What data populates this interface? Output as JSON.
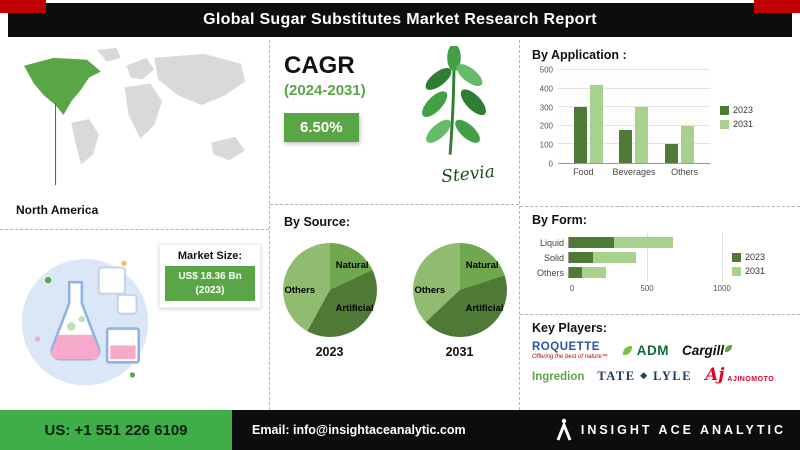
{
  "header": {
    "title": "Global Sugar Substitutes Market Research Report"
  },
  "map_section": {
    "region_label": "North America"
  },
  "market_size": {
    "label": "Market Size:",
    "value": "US$ 18.36 Bn",
    "year": "(2023)"
  },
  "cagr": {
    "label": "CAGR",
    "period": "(2024-2031)",
    "value": "6.50%",
    "plant_caption": "Stevia"
  },
  "colors": {
    "accent_green": "#5aa646",
    "footer_green": "#3fae49",
    "header_black": "#0d0d0d",
    "corner_red": "#c00000",
    "series_2023": "#4e7a35",
    "series_2031": "#a9d18e"
  },
  "chart_data": [
    {
      "id": "application",
      "type": "bar",
      "title": "By Application :",
      "categories": [
        "Food",
        "Beverages",
        "Others"
      ],
      "series": [
        {
          "name": "2023",
          "color": "#4e7a35",
          "values": [
            300,
            180,
            100
          ]
        },
        {
          "name": "2031",
          "color": "#a9d18e",
          "values": [
            420,
            300,
            200
          ]
        }
      ],
      "ylim": [
        0,
        500
      ],
      "yticks": [
        0,
        100,
        200,
        300,
        400,
        500
      ],
      "grid": true,
      "legend_position": "right"
    },
    {
      "id": "form",
      "type": "bar-horizontal-stacked",
      "title": "By  Form:",
      "categories": [
        "Liquid",
        "Solid",
        "Others"
      ],
      "series": [
        {
          "name": "2023",
          "color": "#4e7a35",
          "values": [
            300,
            160,
            90
          ]
        },
        {
          "name": "2031",
          "color": "#a9d18e",
          "values": [
            400,
            290,
            160
          ]
        }
      ],
      "xlim": [
        0,
        1000
      ],
      "xticks": [
        0,
        500,
        1000
      ],
      "grid": true,
      "legend_position": "right"
    },
    {
      "id": "source",
      "type": "pie",
      "title": "By Source:",
      "pies": [
        {
          "year": "2023",
          "slices": [
            {
              "name": "Natural",
              "value": 18,
              "color": "#6fa84f"
            },
            {
              "name": "Artificial",
              "value": 40,
              "color": "#4e7a35"
            },
            {
              "name": "Others",
              "value": 42,
              "color": "#8fbc70"
            }
          ]
        },
        {
          "year": "2031",
          "slices": [
            {
              "name": "Natural",
              "value": 20,
              "color": "#6fa84f"
            },
            {
              "name": "Artificial",
              "value": 43,
              "color": "#4e7a35"
            },
            {
              "name": "Others",
              "value": 37,
              "color": "#8fbc70"
            }
          ]
        }
      ]
    }
  ],
  "key_players": {
    "title": "Key Players:",
    "logos": [
      {
        "name": "ROQUETTE",
        "tagline": "Offering the best of nature™"
      },
      {
        "name": "ADM"
      },
      {
        "name": "Cargill"
      },
      {
        "name": "Ingredion"
      },
      {
        "part1": "TATE",
        "emblem": "❖",
        "part2": "LYLE"
      },
      {
        "mark": "Aj",
        "name": "AJINOMOTO"
      }
    ]
  },
  "footer": {
    "phone": "US: +1 551 226 6109",
    "email": "Email: info@insightaceanalytic.com",
    "brand": "INSIGHT ACE ANALYTIC"
  }
}
